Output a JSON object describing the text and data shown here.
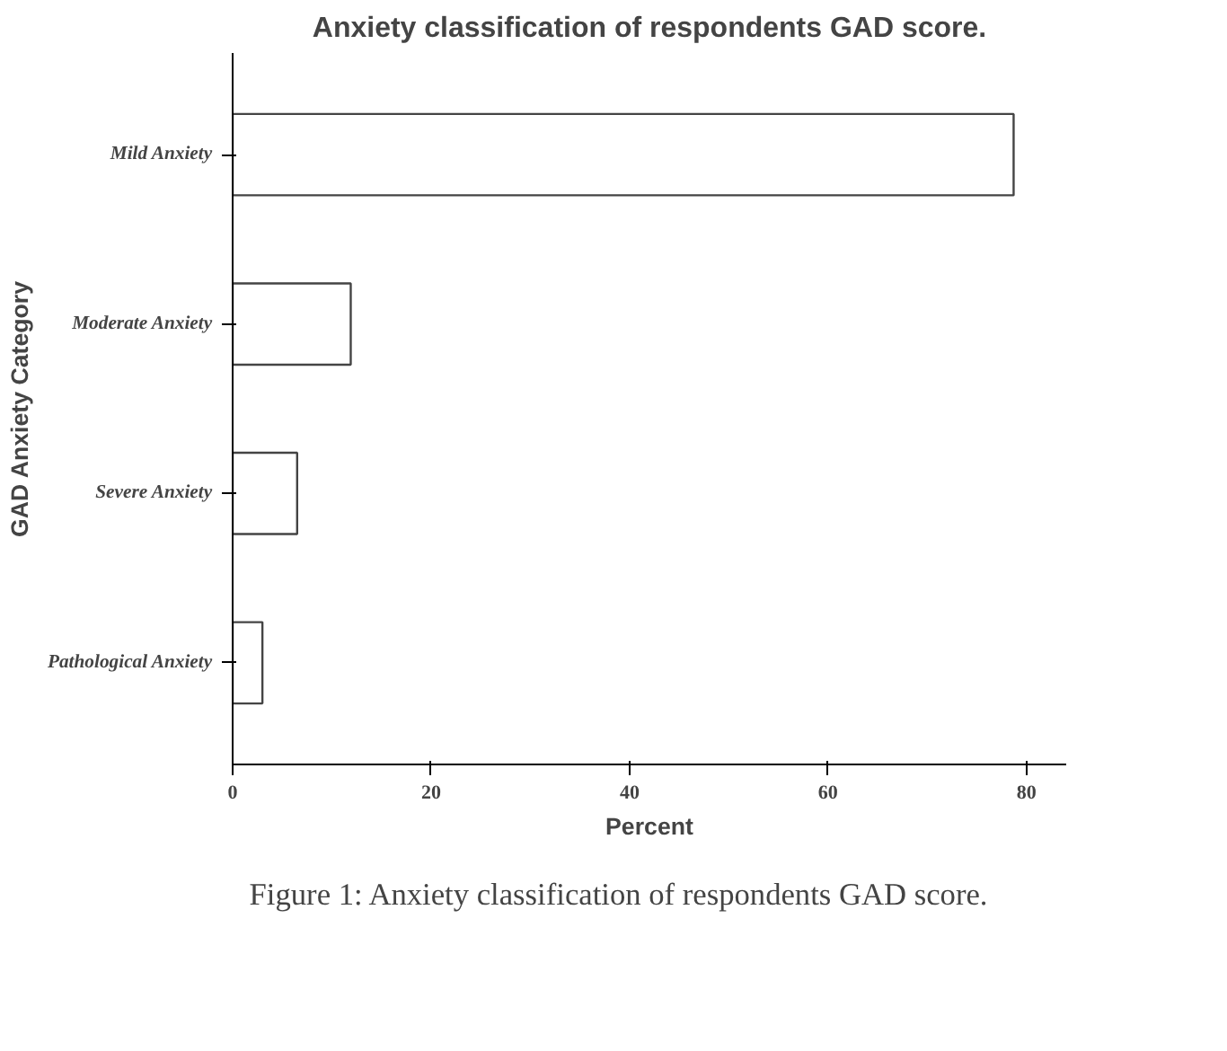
{
  "chart_data": {
    "type": "bar",
    "orientation": "horizontal",
    "title": "Anxiety classification of respondents GAD score.",
    "xlabel": "Percent",
    "ylabel": "GAD Anxiety Category",
    "categories": [
      "Mild Anxiety",
      "Moderate Anxiety",
      "Severe Anxiety",
      "Pathological Anxiety"
    ],
    "values": [
      78.7,
      11.9,
      6.5,
      3.0
    ],
    "color": "#ffffff",
    "xlim": [
      0,
      84
    ],
    "xticks": [
      0,
      20,
      40,
      60,
      80
    ],
    "grid": false,
    "annotations": [
      "Figure 1: Anxiety classification of respondents GAD score."
    ]
  }
}
